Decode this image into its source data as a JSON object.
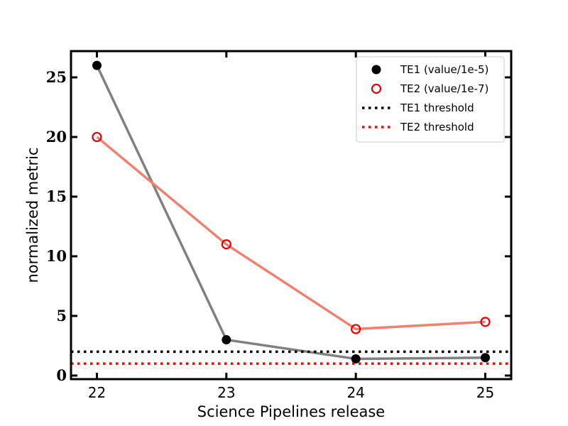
{
  "chart_data": {
    "type": "line",
    "xlabel": "Science Pipelines release",
    "ylabel": "normalized metric",
    "categories": [
      "22",
      "23",
      "24",
      "25"
    ],
    "x": [
      22,
      23,
      24,
      25
    ],
    "xlim": [
      21.8,
      25.2
    ],
    "ylim": [
      -0.3,
      27.2
    ],
    "yticks": [
      0,
      5,
      10,
      15,
      20,
      25
    ],
    "grid": false,
    "legend_position": "top-right",
    "series": [
      {
        "name": "TE1 (value/1e-5)",
        "values": [
          26.0,
          3.0,
          1.4,
          1.5
        ],
        "marker": "filled-circle",
        "marker_color": "#000000",
        "line_color": "#808080"
      },
      {
        "name": "TE2 (value/1e-7)",
        "values": [
          20.0,
          11.0,
          3.9,
          4.5
        ],
        "marker": "open-circle",
        "marker_color": "#e00000",
        "line_color": "#f08070"
      }
    ],
    "thresholds": [
      {
        "name": "TE1 threshold",
        "value": 2.0,
        "color": "#000000",
        "style": "dotted"
      },
      {
        "name": "TE2 threshold",
        "value": 1.0,
        "color": "#ff0000",
        "style": "dotted"
      }
    ]
  }
}
